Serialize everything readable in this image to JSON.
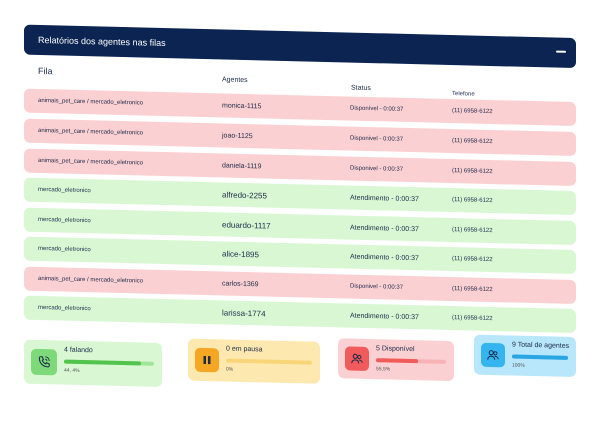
{
  "panel": {
    "title": "Relatórios dos agentes nas filas"
  },
  "columns": {
    "fila": "Fila",
    "agentes": "Agentes",
    "status": "Status",
    "telefone": "Telefone"
  },
  "rows": [
    {
      "fila": "animais_pet_care / mercado_eletronico",
      "agent": "monica-1115",
      "status": "Disponível - 0:00:37",
      "phone": "(11) 6958-6122",
      "state": "red"
    },
    {
      "fila": "animais_pet_care / mercado_eletronico",
      "agent": "joao-1125",
      "status": "Disponivel - 0:00:37",
      "phone": "(11) 6958-6122",
      "state": "red"
    },
    {
      "fila": "animais_pet_care / mercado_eletronico",
      "agent": "daniela-1119",
      "status": "Disponivel - 0:00:37",
      "phone": "(11) 6958-6122",
      "state": "red"
    },
    {
      "fila": "mercado_eletronico",
      "agent": "alfredo-2255",
      "status": "Atendimento  - 0:00:37",
      "phone": "(11) 6958-6122",
      "state": "green"
    },
    {
      "fila": "mercado_eletronico",
      "agent": "eduardo-1117",
      "status": "Atendimento  - 0:00:37",
      "phone": "(11) 6958-6122",
      "state": "green"
    },
    {
      "fila": "mercado_eletronico",
      "agent": "alice-1895",
      "status": "Atendimento  - 0:00:37",
      "phone": "(11) 6958-6122",
      "state": "green"
    },
    {
      "fila": "animais_pet_care / mercado_eletronico",
      "agent": "carlos-1369",
      "status": "Disponivel - 0:00:37",
      "phone": "(11) 6958-6122",
      "state": "red"
    },
    {
      "fila": "mercado_eletronico",
      "agent": "larissa-1774",
      "status": "Atendimento  - 0:00:37",
      "phone": "(11) 6958-6122",
      "state": "green"
    }
  ],
  "cards": [
    {
      "title": "4 falando",
      "sub": "44, 4%",
      "icon": "phone-icon",
      "progress": 0.85,
      "bg": "#d9f7d3",
      "iconbg": "#7ed97a",
      "bar": "#9fe59a",
      "fillc": "#52c34d"
    },
    {
      "title": "0 em pausa",
      "sub": "0%",
      "icon": "pause-icon",
      "progress": 0.0,
      "bg": "#fde9b0",
      "iconbg": "#f5a623",
      "bar": "#f9d57a",
      "fillc": "#f5a623"
    },
    {
      "title": "5 Disponível",
      "sub": "55,5%",
      "icon": "users-icon",
      "progress": 0.6,
      "bg": "#fbd0d2",
      "iconbg": "#f15b5b",
      "bar": "#f7b2b4",
      "fillc": "#f15b5b"
    },
    {
      "title": "9 Total de agentes",
      "sub": "100%",
      "icon": "users-icon",
      "progress": 1.0,
      "bg": "#b8e6fb",
      "iconbg": "#35b5ef",
      "bar": "#7fd0f5",
      "fillc": "#2aa7e3"
    }
  ]
}
